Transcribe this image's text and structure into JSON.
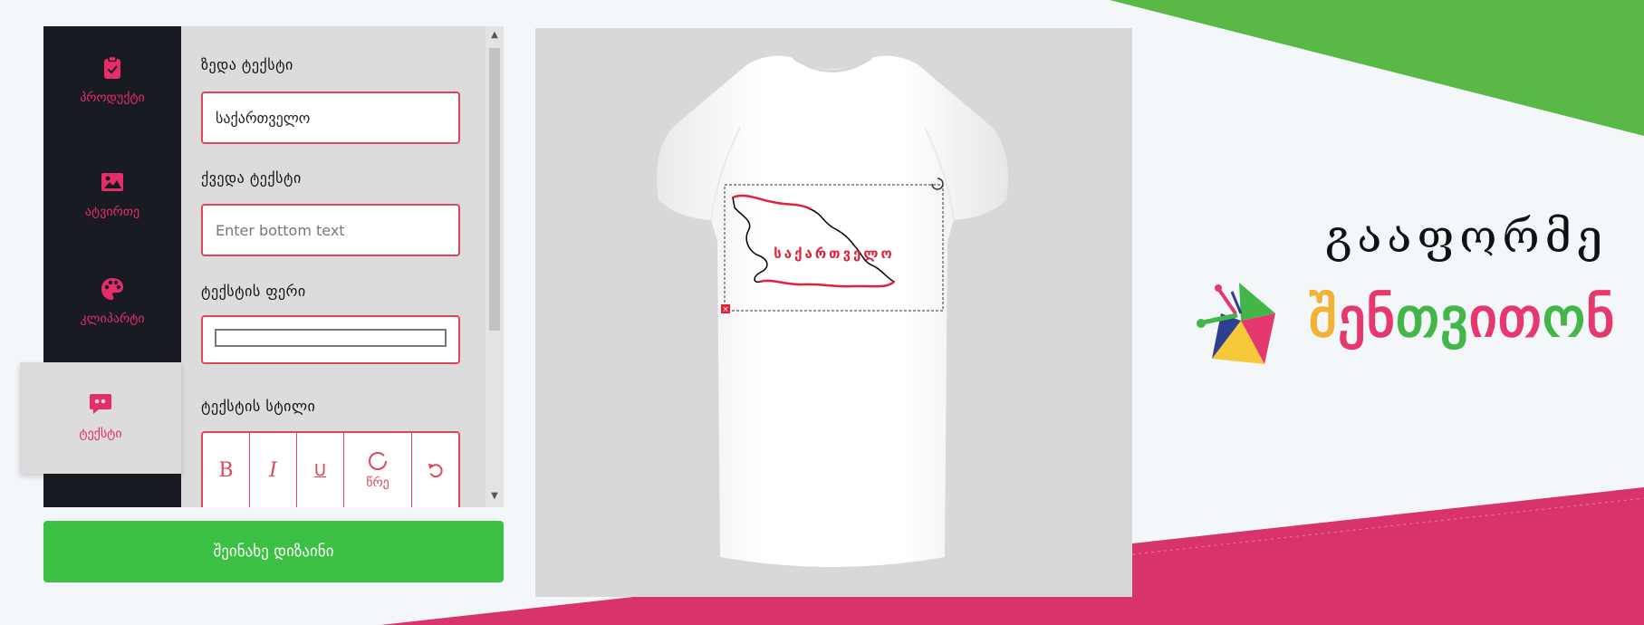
{
  "sidebar": {
    "items": [
      {
        "label": "პროდუქტი",
        "icon": "clipboard-check-icon"
      },
      {
        "label": "ატვირთე",
        "icon": "image-icon"
      },
      {
        "label": "კლიპარტი",
        "icon": "palette-icon"
      },
      {
        "label": "ტექსტი",
        "icon": "quote-bubble-icon",
        "active": true
      }
    ]
  },
  "form": {
    "top_text_label": "ზედა ტექსტი",
    "top_text_value": "საქართველო",
    "bottom_text_label": "ქვედა ტექსტი",
    "bottom_text_placeholder": "Enter bottom text",
    "text_color_label": "ტექსტის ფერი",
    "text_style_label": "ტექსტის სტილი",
    "style_buttons": {
      "bold": "B",
      "italic": "I",
      "underline": "U",
      "circle_label": "წრე",
      "reset_icon": "undo-icon"
    }
  },
  "save_button": "შეინახე დიზაინი",
  "preview": {
    "shirt_text": "საქართველო"
  },
  "brand": {
    "tagline": "გააფორმე",
    "name": "შენთვითონ",
    "name_letter_colors": [
      "#f2b233",
      "#e4386e",
      "#e4386e",
      "#43b649",
      "#43b649",
      "#e4386e",
      "#e4386e",
      "#43b649",
      "#e4386e"
    ]
  },
  "colors": {
    "accent": "#e52d69",
    "input_border": "#e0455f",
    "sidebar_bg": "#181b21",
    "save_green": "#3cc043",
    "bg_green": "#5ab847",
    "bg_pink": "#d8336b"
  }
}
